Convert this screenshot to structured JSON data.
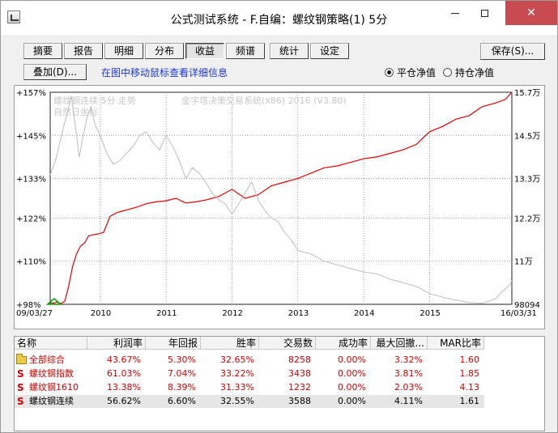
{
  "window": {
    "title": "公式测试系统 - F.自编：螺纹钢策略(1) 5分",
    "close_glyph": "✕"
  },
  "tabs": [
    {
      "label": "摘要"
    },
    {
      "label": "报告"
    },
    {
      "label": "明细"
    },
    {
      "label": "分布"
    },
    {
      "label": "收益",
      "active": true
    },
    {
      "label": "频谱"
    },
    {
      "label": "统计"
    },
    {
      "label": "设定"
    }
  ],
  "toolbar": {
    "save_label": "保存(S)...",
    "overlay_label": "叠加(D)...",
    "hint": "在图中移动鼠标查看详细信息",
    "radio_flat": "平仓净值",
    "radio_hold": "持仓净值",
    "radio_selected": "flat"
  },
  "chart_data": {
    "type": "line",
    "watermark": [
      "螺纹钢连续 5分 走势",
      "自然日坐标",
      "金字塔决策交易系统(x86) 2016 (V3.80)"
    ],
    "left_axis": {
      "ticks": [
        "+157%",
        "+145%",
        "+133%",
        "+122%",
        "+110%",
        "+98%"
      ],
      "values": [
        157,
        145,
        133,
        122,
        110,
        98
      ]
    },
    "right_axis": {
      "ticks": [
        "15.7万",
        "14.5万",
        "13.3万",
        "12.2万",
        "11万",
        "98094"
      ],
      "values": [
        157000,
        145000,
        133000,
        122000,
        110000,
        98094
      ]
    },
    "x_axis": {
      "start_label": "09/03/27",
      "end_label": "16/03/31",
      "years": [
        "2010",
        "2011",
        "2012",
        "2013",
        "2014",
        "2015"
      ]
    },
    "colors": {
      "equity": "#e00000",
      "price": "#bdbdbd",
      "grid": "#9a9a9a",
      "baseline_fill": "#00a000"
    },
    "series": [
      {
        "name": "equity",
        "x": [
          2009.24,
          2009.29,
          2009.34,
          2009.4,
          2009.46,
          2009.52,
          2009.58,
          2009.64,
          2009.7,
          2009.76,
          2009.82,
          2009.88,
          2009.95,
          2010.05,
          2010.15,
          2010.25,
          2010.35,
          2010.45,
          2010.55,
          2010.7,
          2010.85,
          2011.0,
          2011.15,
          2011.3,
          2011.45,
          2011.6,
          2011.8,
          2012.0,
          2012.2,
          2012.4,
          2012.6,
          2012.8,
          2013.0,
          2013.2,
          2013.4,
          2013.6,
          2013.8,
          2014.0,
          2014.2,
          2014.4,
          2014.6,
          2014.8,
          2015.0,
          2015.2,
          2015.4,
          2015.6,
          2015.8,
          2016.0,
          2016.15,
          2016.25
        ],
        "y": [
          98.5,
          98.3,
          98.6,
          98.2,
          98.8,
          103.0,
          108.5,
          112.0,
          114.2,
          115.0,
          117.0,
          117.3,
          117.5,
          118.0,
          122.5,
          123.5,
          124.0,
          124.5,
          125.0,
          126.0,
          126.5,
          126.8,
          127.5,
          126.2,
          126.5,
          127.0,
          128.0,
          130.0,
          127.5,
          128.5,
          131.0,
          132.0,
          133.0,
          134.5,
          136.0,
          136.5,
          137.5,
          138.5,
          139.0,
          140.0,
          141.0,
          142.5,
          146.0,
          147.5,
          149.5,
          150.5,
          153.0,
          154.0,
          155.0,
          157.0
        ]
      },
      {
        "name": "price",
        "x": [
          2009.24,
          2009.32,
          2009.4,
          2009.48,
          2009.56,
          2009.62,
          2009.68,
          2009.74,
          2009.8,
          2009.86,
          2009.92,
          2010.0,
          2010.1,
          2010.2,
          2010.3,
          2010.4,
          2010.5,
          2010.6,
          2010.7,
          2010.8,
          2010.9,
          2011.0,
          2011.1,
          2011.2,
          2011.3,
          2011.4,
          2011.5,
          2011.6,
          2011.7,
          2011.8,
          2011.9,
          2012.0,
          2012.1,
          2012.2,
          2012.3,
          2012.4,
          2012.5,
          2012.6,
          2012.7,
          2012.8,
          2012.9,
          2013.0,
          2013.2,
          2013.4,
          2013.6,
          2013.8,
          2014.0,
          2014.2,
          2014.4,
          2014.6,
          2014.8,
          2015.0,
          2015.2,
          2015.4,
          2015.6,
          2015.8,
          2016.0,
          2016.1,
          2016.2,
          2016.25
        ],
        "y": [
          134.0,
          138.0,
          144.0,
          150.0,
          156.0,
          148.0,
          139.0,
          145.0,
          150.0,
          153.0,
          148.0,
          145.0,
          140.0,
          137.0,
          138.0,
          140.0,
          142.0,
          145.0,
          146.0,
          143.0,
          141.0,
          145.0,
          142.0,
          138.0,
          133.0,
          136.0,
          134.5,
          132.0,
          129.0,
          127.0,
          126.0,
          123.0,
          126.0,
          129.0,
          132.0,
          127.0,
          124.0,
          122.0,
          121.0,
          118.0,
          116.0,
          113.0,
          112.0,
          110.0,
          109.0,
          108.0,
          107.0,
          106.5,
          105.0,
          104.0,
          103.0,
          101.0,
          100.0,
          99.2,
          98.5,
          98.3,
          99.5,
          101.5,
          103.0,
          104.5
        ]
      }
    ]
  },
  "table": {
    "columns": [
      "名称",
      "利润率",
      "年回报",
      "胜率",
      "交易数",
      "成功率",
      "最大回撤...",
      "MAR比率"
    ],
    "rows": [
      {
        "icon": "folder-icon",
        "name": "全部综合",
        "color": "red",
        "values": [
          "43.67%",
          "5.30%",
          "32.65%",
          "8258",
          "0.00%",
          "3.32%",
          "1.60"
        ]
      },
      {
        "icon": "s-icon",
        "name": "螺纹钢指数",
        "color": "red",
        "values": [
          "61.03%",
          "7.04%",
          "33.22%",
          "3438",
          "0.00%",
          "3.81%",
          "1.85"
        ]
      },
      {
        "icon": "s-icon",
        "name": "螺纹钢1610",
        "color": "red",
        "values": [
          "13.38%",
          "8.39%",
          "31.33%",
          "1232",
          "0.00%",
          "2.03%",
          "4.13"
        ]
      },
      {
        "icon": "s-icon",
        "name": "螺纹钢连续",
        "color": "blk",
        "selected": true,
        "values": [
          "56.62%",
          "6.60%",
          "32.55%",
          "3588",
          "0.00%",
          "4.11%",
          "1.61"
        ]
      }
    ]
  }
}
